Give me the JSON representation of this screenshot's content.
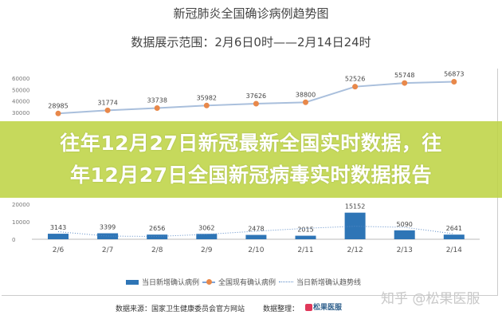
{
  "header": {
    "title": "新冠肺炎全国确诊病例趋势图",
    "subtitle": "数据展示范围：2月6日0时——2月14日24时"
  },
  "banner": {
    "line1": "往年12月27日新冠最新全国实时数据，往",
    "line2": "年12月27日全国新冠病毒实时数据报告"
  },
  "chart_data": {
    "type": "bar",
    "categories": [
      "2/6",
      "2/7",
      "2/8",
      "2/9",
      "2/10",
      "2/11",
      "2/12",
      "2/13",
      "2/14"
    ],
    "ylim": [
      0,
      60000
    ],
    "yticks": [
      0,
      10000,
      20000,
      30000,
      40000,
      50000,
      60000
    ],
    "grid": false,
    "legend_position": "bottom",
    "series": [
      {
        "name": "当日新增确认病例",
        "type": "bar",
        "color": "#2e75b6",
        "values": [
          3143,
          3399,
          2656,
          3062,
          2478,
          2015,
          15152,
          5090,
          2641
        ]
      },
      {
        "name": "全国现有确认病例",
        "type": "line",
        "color": "#e8884a",
        "values": [
          28985,
          31774,
          33738,
          35982,
          37626,
          38800,
          52526,
          55748,
          56873
        ]
      },
      {
        "name": "当日新增确认趋势线",
        "type": "line-dotted",
        "color": "#5a8ac6",
        "values": [
          4300,
          1800,
          1600,
          2800,
          4600,
          6200,
          7400,
          6800,
          3100
        ]
      }
    ]
  },
  "footer": {
    "source": "数据来源：国家卫生健康委员会官方网站",
    "organizer": "数据整理：",
    "logo_text": "松果医服",
    "watermark": "知乎 @松果医服"
  }
}
